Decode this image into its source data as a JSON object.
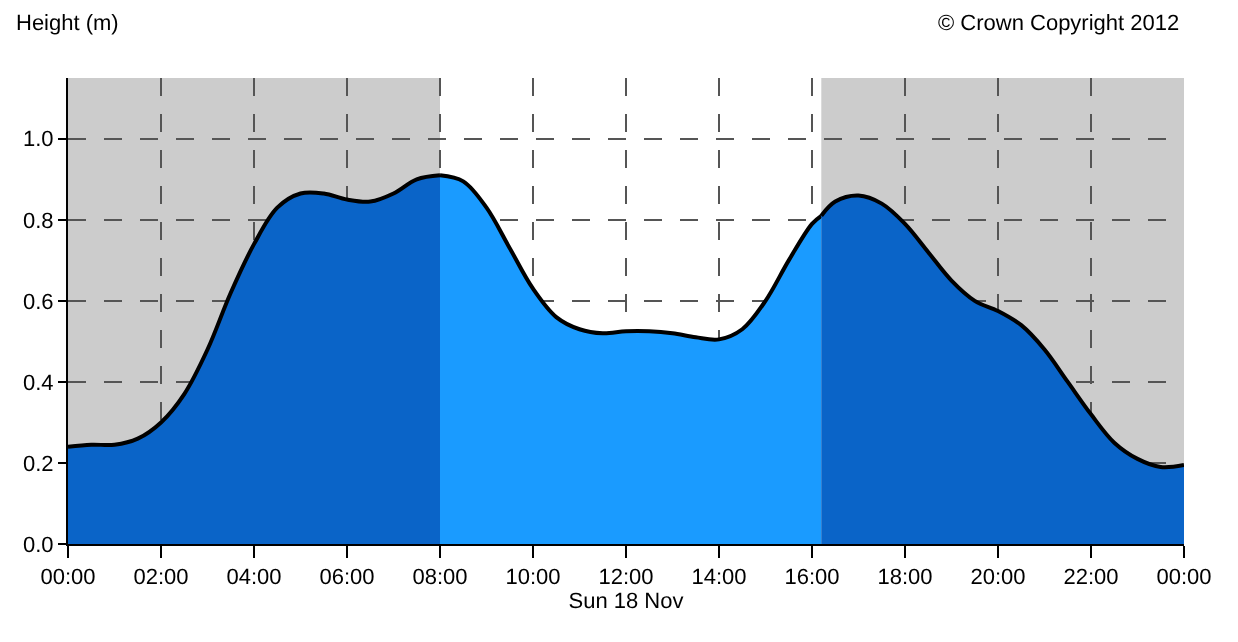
{
  "chart_data": {
    "type": "area",
    "ylabel": "Height (m)",
    "xlabel": "Sun 18 Nov",
    "annotations": [
      "© Crown Copyright 2012"
    ],
    "series": [
      {
        "color": "#0a64c8",
        "x": [
          0,
          0.5,
          1,
          1.5,
          2,
          2.5,
          3,
          3.5,
          4,
          4.5,
          5,
          5.5,
          6,
          6.5,
          7,
          7.5,
          8
        ],
        "values": [
          0.24,
          0.245,
          0.245,
          0.26,
          0.3,
          0.37,
          0.48,
          0.62,
          0.74,
          0.83,
          0.865,
          0.865,
          0.85,
          0.845,
          0.865,
          0.9,
          0.91
        ]
      },
      {
        "color": "#1a9bff",
        "x": [
          8,
          8.5,
          9,
          9.5,
          10,
          10.5,
          11,
          11.5,
          12,
          12.5,
          13,
          13.5,
          14,
          14.5,
          15,
          15.5,
          16,
          16.2
        ],
        "values": [
          0.91,
          0.895,
          0.83,
          0.73,
          0.63,
          0.56,
          0.53,
          0.52,
          0.525,
          0.525,
          0.52,
          0.51,
          0.505,
          0.53,
          0.6,
          0.7,
          0.79,
          0.81
        ]
      },
      {
        "color": "#0a64c8",
        "x": [
          16.2,
          16.5,
          17,
          17.5,
          18,
          18.5,
          19,
          19.5,
          20,
          20.5,
          21,
          21.5,
          22,
          22.5,
          23,
          23.5,
          24
        ],
        "values": [
          0.81,
          0.845,
          0.86,
          0.84,
          0.79,
          0.72,
          0.65,
          0.6,
          0.575,
          0.54,
          0.48,
          0.4,
          0.32,
          0.25,
          0.21,
          0.19,
          0.195
        ]
      }
    ],
    "bands": [
      {
        "axis": "x",
        "from": 0,
        "to": 8,
        "color": "#cccccc"
      },
      {
        "axis": "x",
        "from": 16.2,
        "to": 24,
        "color": "#cccccc"
      }
    ],
    "xlim": [
      0,
      24
    ],
    "xticks": [
      {
        "value": 0,
        "label": "00:00"
      },
      {
        "value": 2,
        "label": "02:00"
      },
      {
        "value": 4,
        "label": "04:00"
      },
      {
        "value": 6,
        "label": "06:00"
      },
      {
        "value": 8,
        "label": "08:00"
      },
      {
        "value": 10,
        "label": "10:00"
      },
      {
        "value": 12,
        "label": "12:00"
      },
      {
        "value": 14,
        "label": "14:00"
      },
      {
        "value": 16,
        "label": "16:00"
      },
      {
        "value": 18,
        "label": "18:00"
      },
      {
        "value": 20,
        "label": "20:00"
      },
      {
        "value": 22,
        "label": "22:00"
      },
      {
        "value": 24,
        "label": "00:00"
      }
    ],
    "ylim": [
      0,
      1.15
    ],
    "yticks": [
      {
        "value": 0,
        "label": "0.0"
      },
      {
        "value": 0.2,
        "label": "0.2"
      },
      {
        "value": 0.4,
        "label": "0.4"
      },
      {
        "value": 0.6,
        "label": "0.6"
      },
      {
        "value": 0.8,
        "label": "0.8"
      },
      {
        "value": 1,
        "label": "1.0"
      }
    ],
    "grid": true,
    "line_style": "solid"
  }
}
